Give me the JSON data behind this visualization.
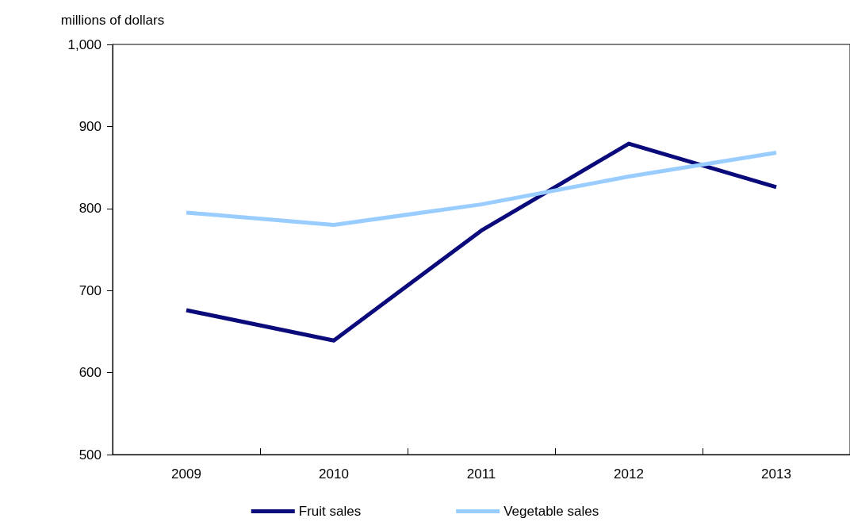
{
  "chart_data": {
    "type": "line",
    "ylabel": "millions of dollars",
    "categories": [
      "2009",
      "2010",
      "2011",
      "2012",
      "2013"
    ],
    "series": [
      {
        "name": "Fruit sales",
        "color": "#0a0a7a",
        "values": [
          676,
          639,
          773,
          879,
          826
        ]
      },
      {
        "name": "Vegetable sales",
        "color": "#99ccff",
        "values": [
          795,
          780,
          805,
          839,
          868
        ]
      }
    ],
    "ylim": [
      500,
      1000
    ],
    "yticks": [
      500,
      600,
      700,
      800,
      900,
      {
        "value": 1000,
        "label": "1,000"
      }
    ],
    "grid": false,
    "legend": "bottom",
    "marker": "none",
    "line_style": "solid"
  }
}
